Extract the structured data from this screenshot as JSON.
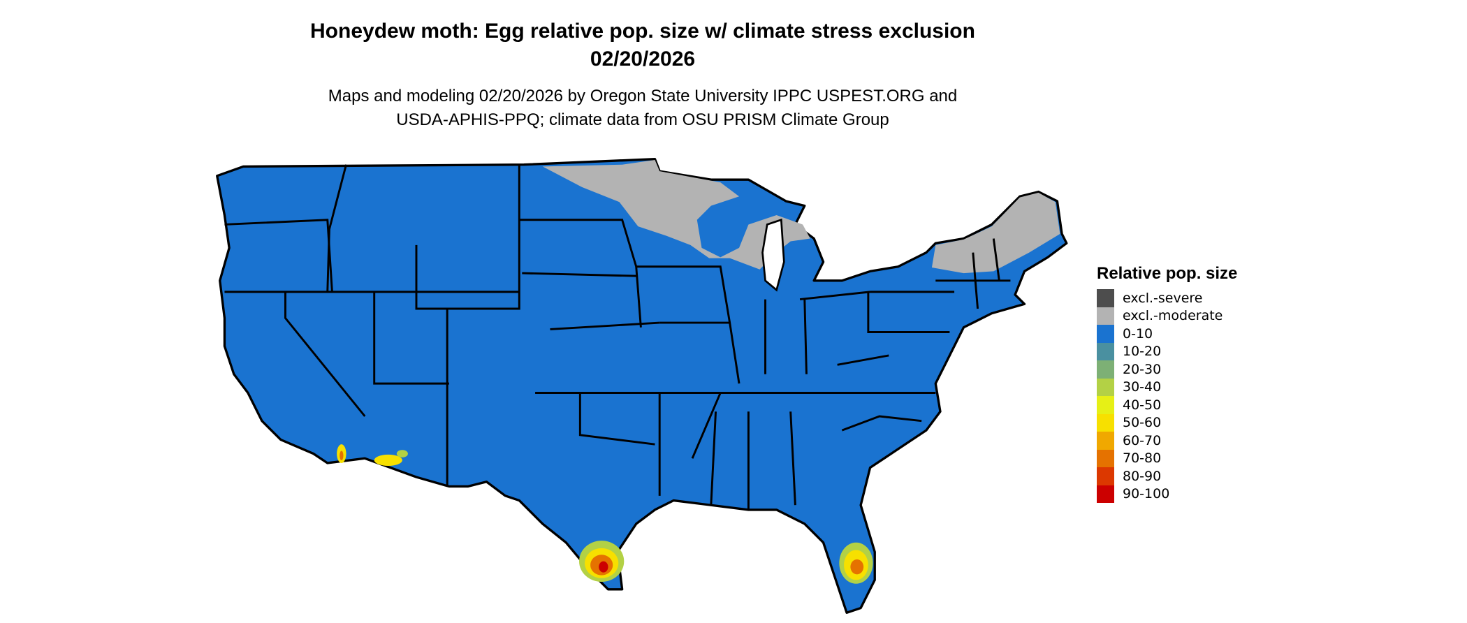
{
  "title": "Honeydew moth: Egg relative pop. size w/ climate stress exclusion",
  "date": "02/20/2026",
  "subtitle_line1": "Maps and modeling 02/20/2026 by Oregon State University IPPC USPEST.ORG and",
  "subtitle_line2": "USDA-APHIS-PPQ; climate data from OSU PRISM Climate Group",
  "legend": {
    "title": "Relative pop. size",
    "items": [
      {
        "label": "excl.-severe",
        "color": "#4d4d4d"
      },
      {
        "label": "excl.-moderate",
        "color": "#b3b3b3"
      },
      {
        "label": "0-10",
        "color": "#1a73d0"
      },
      {
        "label": "10-20",
        "color": "#4a90a0"
      },
      {
        "label": "20-30",
        "color": "#7db075"
      },
      {
        "label": "30-40",
        "color": "#b3d145"
      },
      {
        "label": "40-50",
        "color": "#e6f016"
      },
      {
        "label": "50-60",
        "color": "#f7e000"
      },
      {
        "label": "60-70",
        "color": "#f0a800"
      },
      {
        "label": "70-80",
        "color": "#e57200"
      },
      {
        "label": "80-90",
        "color": "#dc3800"
      },
      {
        "label": "90-100",
        "color": "#cc0000"
      }
    ]
  },
  "map": {
    "region": "Contiguous United States",
    "dominant_class": "0-10",
    "excluded_moderate_areas": [
      "northern Minnesota",
      "northern Wisconsin",
      "Upper Michigan",
      "northern New England"
    ],
    "hotspots": [
      "southern Texas",
      "southern Florida",
      "southern California / Arizona desert"
    ]
  }
}
